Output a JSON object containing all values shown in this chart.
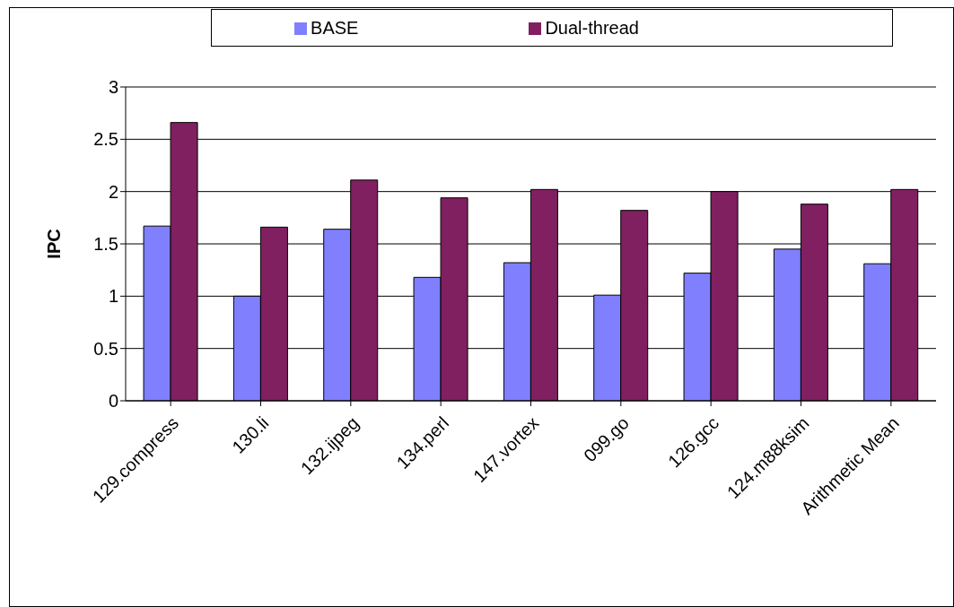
{
  "chart_data": {
    "type": "bar",
    "ylabel": "IPC",
    "categories": [
      "129.compress",
      "130.li",
      "132.ijpeg",
      "134.perl",
      "147.vortex",
      "099.go",
      "126.gcc",
      "124.m88ksim",
      "Arithmetic Mean"
    ],
    "series": [
      {
        "name": "BASE",
        "color": "#8080ff",
        "values": [
          1.67,
          1.0,
          1.64,
          1.18,
          1.32,
          1.01,
          1.22,
          1.45,
          1.31
        ]
      },
      {
        "name": "Dual-thread",
        "color": "#802060",
        "values": [
          2.66,
          1.66,
          2.11,
          1.94,
          2.02,
          1.82,
          2.0,
          1.88,
          2.02
        ]
      }
    ],
    "ylim": [
      0,
      3
    ],
    "yticks": [
      0,
      0.5,
      1,
      1.5,
      2,
      2.5,
      3
    ],
    "grid": "y",
    "legend": "top"
  }
}
